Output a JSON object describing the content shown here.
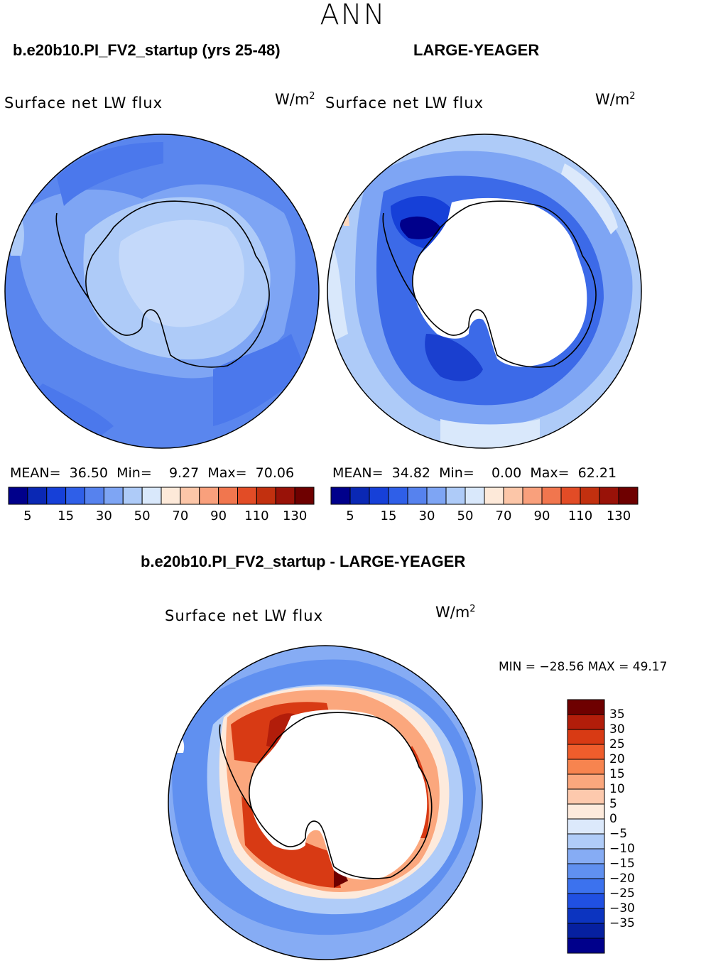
{
  "season": "ANN",
  "panels": [
    {
      "case_title": "b.e20b10.PI_FV2_startup (yrs 25-48)",
      "variable": "Surface net LW flux",
      "units_base": "W/m",
      "units_exp": "2",
      "stats": {
        "mean_label": "MEAN=",
        "mean": "36.50",
        "min_label": "Min=",
        "min": "9.27",
        "max_label": "Max=",
        "max": "70.06"
      }
    },
    {
      "case_title": "LARGE-YEAGER",
      "variable": "Surface net LW flux",
      "units_base": "W/m",
      "units_exp": "2",
      "stats": {
        "mean_label": "MEAN=",
        "mean": "34.82",
        "min_label": "Min=",
        "min": "0.00",
        "max_label": "Max=",
        "max": "62.21"
      }
    }
  ],
  "colorbar": {
    "colors": [
      "#00008b",
      "#0a28b4",
      "#1640d8",
      "#2f5fe8",
      "#5682ee",
      "#7ea5f4",
      "#aecbf8",
      "#d9e8fb",
      "#fde9d9",
      "#fcc6a8",
      "#f9a07c",
      "#f1764e",
      "#e24c26",
      "#c2300f",
      "#991208",
      "#6e0000"
    ],
    "tick_labels": [
      "5",
      "15",
      "30",
      "50",
      "70",
      "90",
      "110",
      "130"
    ]
  },
  "diff_panel": {
    "case_title": "b.e20b10.PI_FV2_startup - LARGE-YEAGER",
    "variable": "Surface net LW flux",
    "units_base": "W/m",
    "units_exp": "2",
    "minmax": "MIN = −28.56 MAX =  49.17",
    "colorbar": {
      "colors": [
        "#6e0000",
        "#b21d0a",
        "#d83a14",
        "#ef5d2c",
        "#f7844f",
        "#fba77d",
        "#fdc9ad",
        "#fdeadc",
        "#dce9fb",
        "#b0ccf8",
        "#86acf4",
        "#6090f0",
        "#3c72ee",
        "#2050e2",
        "#0c34c0",
        "#0620a0",
        "#00008b"
      ],
      "tick_labels": [
        "35",
        "30",
        "25",
        "20",
        "15",
        "10",
        "5",
        "0",
        "−5",
        "−10",
        "−15",
        "−20",
        "−25",
        "−30",
        "−35"
      ]
    }
  }
}
